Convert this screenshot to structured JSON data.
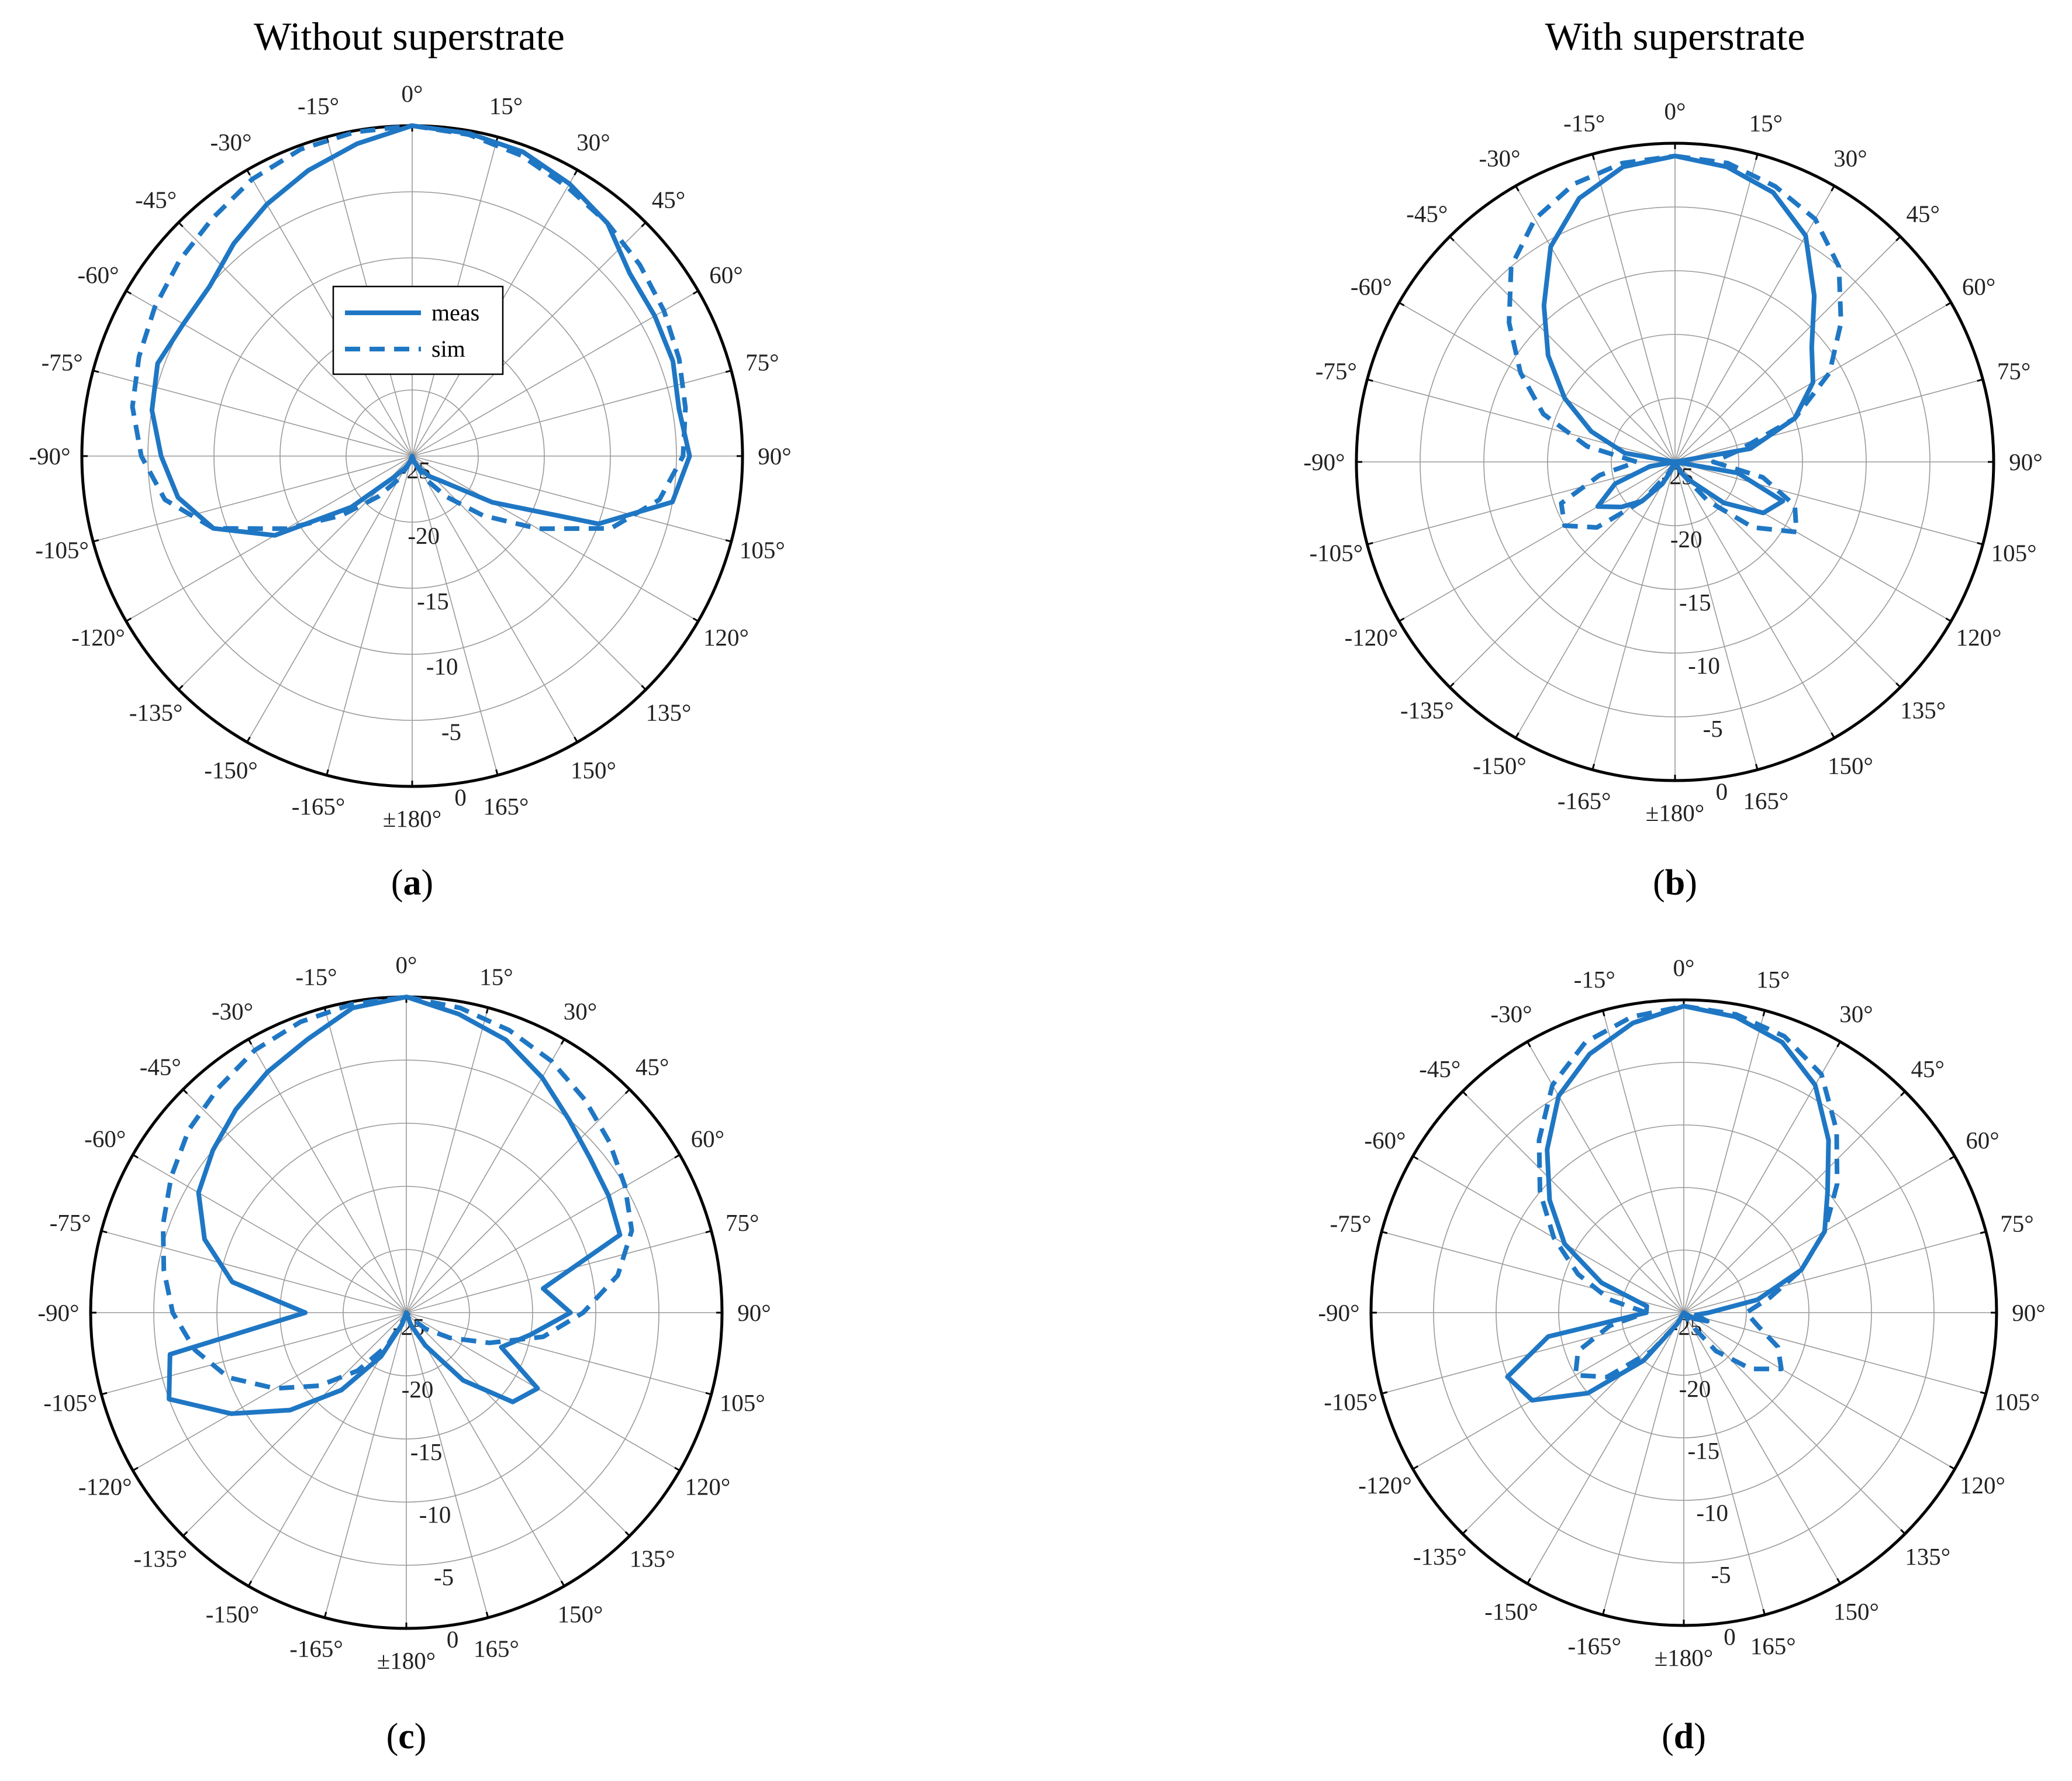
{
  "column_titles": [
    "Without superstrate",
    "With superstrate"
  ],
  "theme": {
    "series_color": "#1f77c4",
    "grid_color": "#9a9a9a",
    "axis_color": "#000000"
  },
  "legend": {
    "entries": [
      "meas",
      "sim"
    ]
  },
  "chart_data": [
    {
      "type": "polar",
      "caption_letter": "a",
      "theta_ticks": [
        "0°",
        "15°",
        "30°",
        "45°",
        "60°",
        "75°",
        "90°",
        "105°",
        "120°",
        "135°",
        "150°",
        "165°",
        "±180°",
        "-165°",
        "-150°",
        "-135°",
        "-120°",
        "-105°",
        "-90°",
        "-75°",
        "-60°",
        "-45°",
        "-30°",
        "-15°"
      ],
      "r_ticks": [
        "-25",
        "-20",
        "-15",
        "-10",
        "-5",
        "0"
      ],
      "r_range": [
        -25,
        0
      ],
      "legend_position": "inside-center",
      "series": [
        {
          "name": "meas",
          "style": "solid",
          "theta": [
            0,
            10,
            20,
            30,
            40,
            50,
            60,
            70,
            80,
            90,
            100,
            110,
            120,
            130,
            140,
            150,
            160,
            170,
            180,
            190,
            200,
            210,
            220,
            230,
            240,
            250,
            260,
            270,
            280,
            290,
            300,
            310,
            320,
            330,
            340,
            350
          ],
          "r": [
            0,
            -0.2,
            -0.5,
            -1.2,
            -2,
            -3.5,
            -3.8,
            -4,
            -4.5,
            -4,
            -5,
            -10,
            -18,
            -22,
            -23,
            -24,
            -24.5,
            -25,
            -25,
            -25,
            -24.5,
            -24,
            -23,
            -19,
            -13,
            -9,
            -7,
            -6,
            -5,
            -4.5,
            -5,
            -5,
            -4,
            -3,
            -2,
            -1
          ]
        },
        {
          "name": "sim",
          "style": "dashed",
          "theta": [
            0,
            10,
            20,
            30,
            40,
            50,
            60,
            70,
            80,
            90,
            100,
            110,
            120,
            130,
            140,
            150,
            160,
            170,
            180,
            190,
            200,
            210,
            220,
            230,
            240,
            250,
            260,
            270,
            280,
            290,
            300,
            310,
            320,
            330,
            340,
            350
          ],
          "r": [
            0,
            -0.3,
            -0.8,
            -1.5,
            -2,
            -2.5,
            -3,
            -3.5,
            -4,
            -4.5,
            -6,
            -9,
            -14,
            -18,
            -21,
            -23,
            -24.5,
            -25,
            -25,
            -25,
            -24.5,
            -23,
            -21,
            -18,
            -14,
            -9,
            -6,
            -4.5,
            -3.5,
            -3,
            -2.5,
            -2,
            -1.5,
            -0.8,
            -0.3,
            -0.1
          ]
        }
      ]
    },
    {
      "type": "polar",
      "caption_letter": "b",
      "theta_ticks": [
        "0°",
        "15°",
        "30°",
        "45°",
        "60°",
        "75°",
        "90°",
        "105°",
        "120°",
        "135°",
        "150°",
        "165°",
        "±180°",
        "-165°",
        "-150°",
        "-135°",
        "-120°",
        "-105°",
        "-90°",
        "-75°",
        "-60°",
        "-45°",
        "-30°",
        "-15°"
      ],
      "r_ticks": [
        "-25",
        "-20",
        "-15",
        "-10",
        "-5",
        "0"
      ],
      "r_range": [
        -25,
        0
      ],
      "series": [
        {
          "name": "meas",
          "style": "solid",
          "theta": [
            0,
            10,
            20,
            30,
            40,
            50,
            60,
            70,
            80,
            90,
            100,
            110,
            120,
            130,
            140,
            150,
            160,
            170,
            180,
            190,
            200,
            210,
            220,
            230,
            240,
            250,
            260,
            270,
            280,
            290,
            300,
            310,
            320,
            330,
            340,
            350
          ],
          "r": [
            -1,
            -1.5,
            -2.5,
            -4.5,
            -8,
            -11,
            -12.5,
            -15,
            -19,
            -25,
            -20,
            -16,
            -17,
            -20,
            -23,
            -24,
            -25,
            -25,
            -25,
            -25,
            -24.5,
            -23,
            -21,
            -19.5,
            -18,
            -20,
            -23,
            -25,
            -21,
            -18,
            -15,
            -12,
            -9,
            -5.5,
            -3,
            -1.5
          ]
        },
        {
          "name": "sim",
          "style": "dashed",
          "theta": [
            0,
            10,
            20,
            30,
            40,
            50,
            60,
            70,
            80,
            90,
            100,
            110,
            120,
            130,
            140,
            150,
            160,
            170,
            180,
            190,
            200,
            210,
            220,
            230,
            240,
            250,
            260,
            270,
            280,
            290,
            300,
            310,
            320,
            330,
            340,
            350
          ],
          "r": [
            -1,
            -1.2,
            -2,
            -3,
            -5,
            -8,
            -11,
            -15,
            -20,
            -22,
            -18,
            -15,
            -14,
            -17,
            -21,
            -24,
            -25,
            -25,
            -25,
            -25,
            -25,
            -24,
            -21,
            -17,
            -15,
            -15.5,
            -19,
            -22,
            -18,
            -14,
            -11,
            -8,
            -5,
            -3,
            -1.8,
            -1.2
          ]
        }
      ]
    },
    {
      "type": "polar",
      "caption_letter": "c",
      "theta_ticks": [
        "0°",
        "15°",
        "30°",
        "45°",
        "60°",
        "75°",
        "90°",
        "105°",
        "120°",
        "135°",
        "150°",
        "165°",
        "±180°",
        "-165°",
        "-150°",
        "-135°",
        "-120°",
        "-105°",
        "-90°",
        "-75°",
        "-60°",
        "-45°",
        "-30°",
        "-15°"
      ],
      "r_ticks": [
        "-25",
        "-20",
        "-15",
        "-10",
        "-5",
        "0"
      ],
      "r_range": [
        -25,
        0
      ],
      "series": [
        {
          "name": "meas",
          "style": "solid",
          "theta": [
            0,
            10,
            20,
            30,
            40,
            50,
            60,
            70,
            80,
            90,
            100,
            110,
            120,
            130,
            140,
            150,
            160,
            170,
            180,
            190,
            200,
            210,
            220,
            230,
            240,
            250,
            260,
            270,
            280,
            290,
            300,
            310,
            320,
            330,
            340,
            350
          ],
          "r": [
            0,
            -1,
            -2,
            -3.5,
            -5,
            -6,
            -6.5,
            -7,
            -14,
            -12,
            -15,
            -17,
            -13,
            -14,
            -18,
            -22,
            -24,
            -25,
            -25,
            -25,
            -24,
            -21,
            -17,
            -13,
            -9,
            -5,
            -6,
            -17,
            -11,
            -8,
            -6,
            -5,
            -4,
            -3,
            -2,
            -0.5
          ]
        },
        {
          "name": "sim",
          "style": "dashed",
          "theta": [
            0,
            10,
            20,
            30,
            40,
            50,
            60,
            70,
            80,
            90,
            100,
            110,
            120,
            130,
            140,
            150,
            160,
            170,
            180,
            190,
            200,
            210,
            220,
            230,
            240,
            250,
            260,
            270,
            280,
            290,
            300,
            310,
            320,
            330,
            340,
            350
          ],
          "r": [
            0,
            -0.5,
            -1.2,
            -2,
            -3,
            -4,
            -5,
            -6,
            -8,
            -11,
            -14,
            -18,
            -21,
            -23,
            -24.5,
            -25,
            -25,
            -25,
            -25,
            -25,
            -24.5,
            -22,
            -19,
            -16,
            -13,
            -10,
            -8,
            -6.5,
            -5.5,
            -4.5,
            -3.5,
            -2.5,
            -1.8,
            -1,
            -0.5,
            -0.2
          ]
        }
      ]
    },
    {
      "type": "polar",
      "caption_letter": "d",
      "theta_ticks": [
        "0°",
        "15°",
        "30°",
        "45°",
        "60°",
        "75°",
        "90°",
        "105°",
        "120°",
        "135°",
        "150°",
        "165°",
        "±180°",
        "-165°",
        "-150°",
        "-135°",
        "-120°",
        "-105°",
        "-90°",
        "-75°",
        "-60°",
        "-45°",
        "-30°",
        "-15°"
      ],
      "r_ticks": [
        "-25",
        "-20",
        "-15",
        "-10",
        "-5",
        "0"
      ],
      "r_range": [
        -25,
        0
      ],
      "series": [
        {
          "name": "meas",
          "style": "solid",
          "theta": [
            0,
            10,
            20,
            30,
            40,
            50,
            60,
            70,
            80,
            90,
            100,
            110,
            120,
            130,
            140,
            150,
            160,
            170,
            180,
            190,
            200,
            210,
            220,
            230,
            240,
            250,
            260,
            270,
            280,
            290,
            300,
            310,
            320,
            330,
            340,
            350
          ],
          "r": [
            -0.5,
            -1,
            -2,
            -4,
            -7,
            -10,
            -12,
            -15,
            -19,
            -23,
            -24,
            -23,
            -24,
            -25,
            -25,
            -25,
            -25,
            -25,
            -25,
            -25,
            -25,
            -24,
            -20,
            -15,
            -11,
            -10,
            -14,
            -22,
            -22,
            -18,
            -14,
            -11,
            -8,
            -5,
            -3,
            -1.5
          ]
        },
        {
          "name": "sim",
          "style": "dashed",
          "theta": [
            0,
            10,
            20,
            30,
            40,
            50,
            60,
            70,
            80,
            90,
            100,
            110,
            120,
            130,
            140,
            150,
            160,
            170,
            180,
            190,
            200,
            210,
            220,
            230,
            240,
            250,
            260,
            270,
            280,
            290,
            300,
            310,
            320,
            330,
            340,
            350
          ],
          "r": [
            -0.5,
            -0.8,
            -1.5,
            -3,
            -6,
            -9,
            -12,
            -15,
            -18,
            -20,
            -19,
            -17,
            -16,
            -18,
            -21,
            -24,
            -25,
            -25,
            -25,
            -25,
            -25,
            -24,
            -21,
            -17,
            -15,
            -16,
            -19,
            -22,
            -19,
            -16,
            -13,
            -10,
            -7,
            -4,
            -2,
            -1
          ]
        }
      ]
    }
  ]
}
